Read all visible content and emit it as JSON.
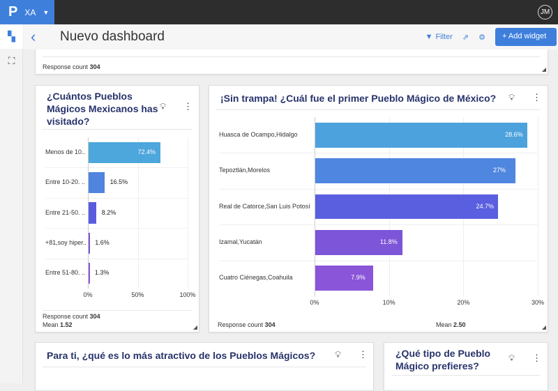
{
  "topbar": {
    "logo": "P",
    "workspace": "XA",
    "user_initials": "JM"
  },
  "header": {
    "title": "Nuevo dashboard",
    "filter_label": "Filter",
    "add_widget_label": "Add widget"
  },
  "colors": {
    "accent": "#3f7fdc",
    "title": "#27336b"
  },
  "top_widget": {
    "response_count_label": "Response count",
    "response_count": "304"
  },
  "widget1": {
    "title": "¿Cuántos Pueblos Mágicos Mexicanos has visitado?",
    "response_count_label": "Response count",
    "response_count": "304",
    "mean_label": "Mean",
    "mean": "1.52",
    "chart_data": {
      "type": "bar",
      "orientation": "horizontal",
      "categories": [
        "Menos de 10...",
        "Entre 10-20. ..",
        "Entre 21-50. ..",
        "+81,soy hiper..",
        "Entre 51-80. .."
      ],
      "values": [
        72.4,
        16.5,
        8.2,
        1.6,
        1.3
      ],
      "value_labels": [
        "72.4%",
        "16.5%",
        "8.2%",
        "1.6%",
        "1.3%"
      ],
      "xlim": [
        0,
        100
      ],
      "xticks": [
        "0%",
        "50%",
        "100%"
      ],
      "colors": [
        "#4da6dc",
        "#4f84df",
        "#5a5be0",
        "#7a55d8",
        "#8a55d8"
      ]
    }
  },
  "widget2": {
    "title": "¡Sin trampa! ¿Cuál fue el primer Pueblo Mágico de México?",
    "response_count_label": "Response count",
    "response_count": "304",
    "mean_label": "Mean",
    "mean": "2.50",
    "chart_data": {
      "type": "bar",
      "orientation": "horizontal",
      "categories": [
        "Huasca de Ocampo,Hidalgo",
        "Tepoztlán,Morelos",
        "Real de Catorce,San Luis Potosí",
        "Izamal,Yucatán",
        "Cuatro Ciénegas,Coahuila"
      ],
      "values": [
        28.6,
        27,
        24.7,
        11.8,
        7.9
      ],
      "value_labels": [
        "28.6%",
        "27%",
        "24.7%",
        "11.8%",
        "7.9%"
      ],
      "xlim": [
        0,
        30
      ],
      "xticks": [
        "0%",
        "10%",
        "20%",
        "30%"
      ],
      "colors": [
        "#4ca2dc",
        "#4f86df",
        "#5a5fe0",
        "#7c55d8",
        "#8a55d8"
      ]
    }
  },
  "widget3": {
    "title": "Para ti, ¿qué es lo más atractivo de los Pueblos Mágicos?"
  },
  "widget4": {
    "title": "¿Qué tipo de Pueblo Mágico prefieres?"
  }
}
